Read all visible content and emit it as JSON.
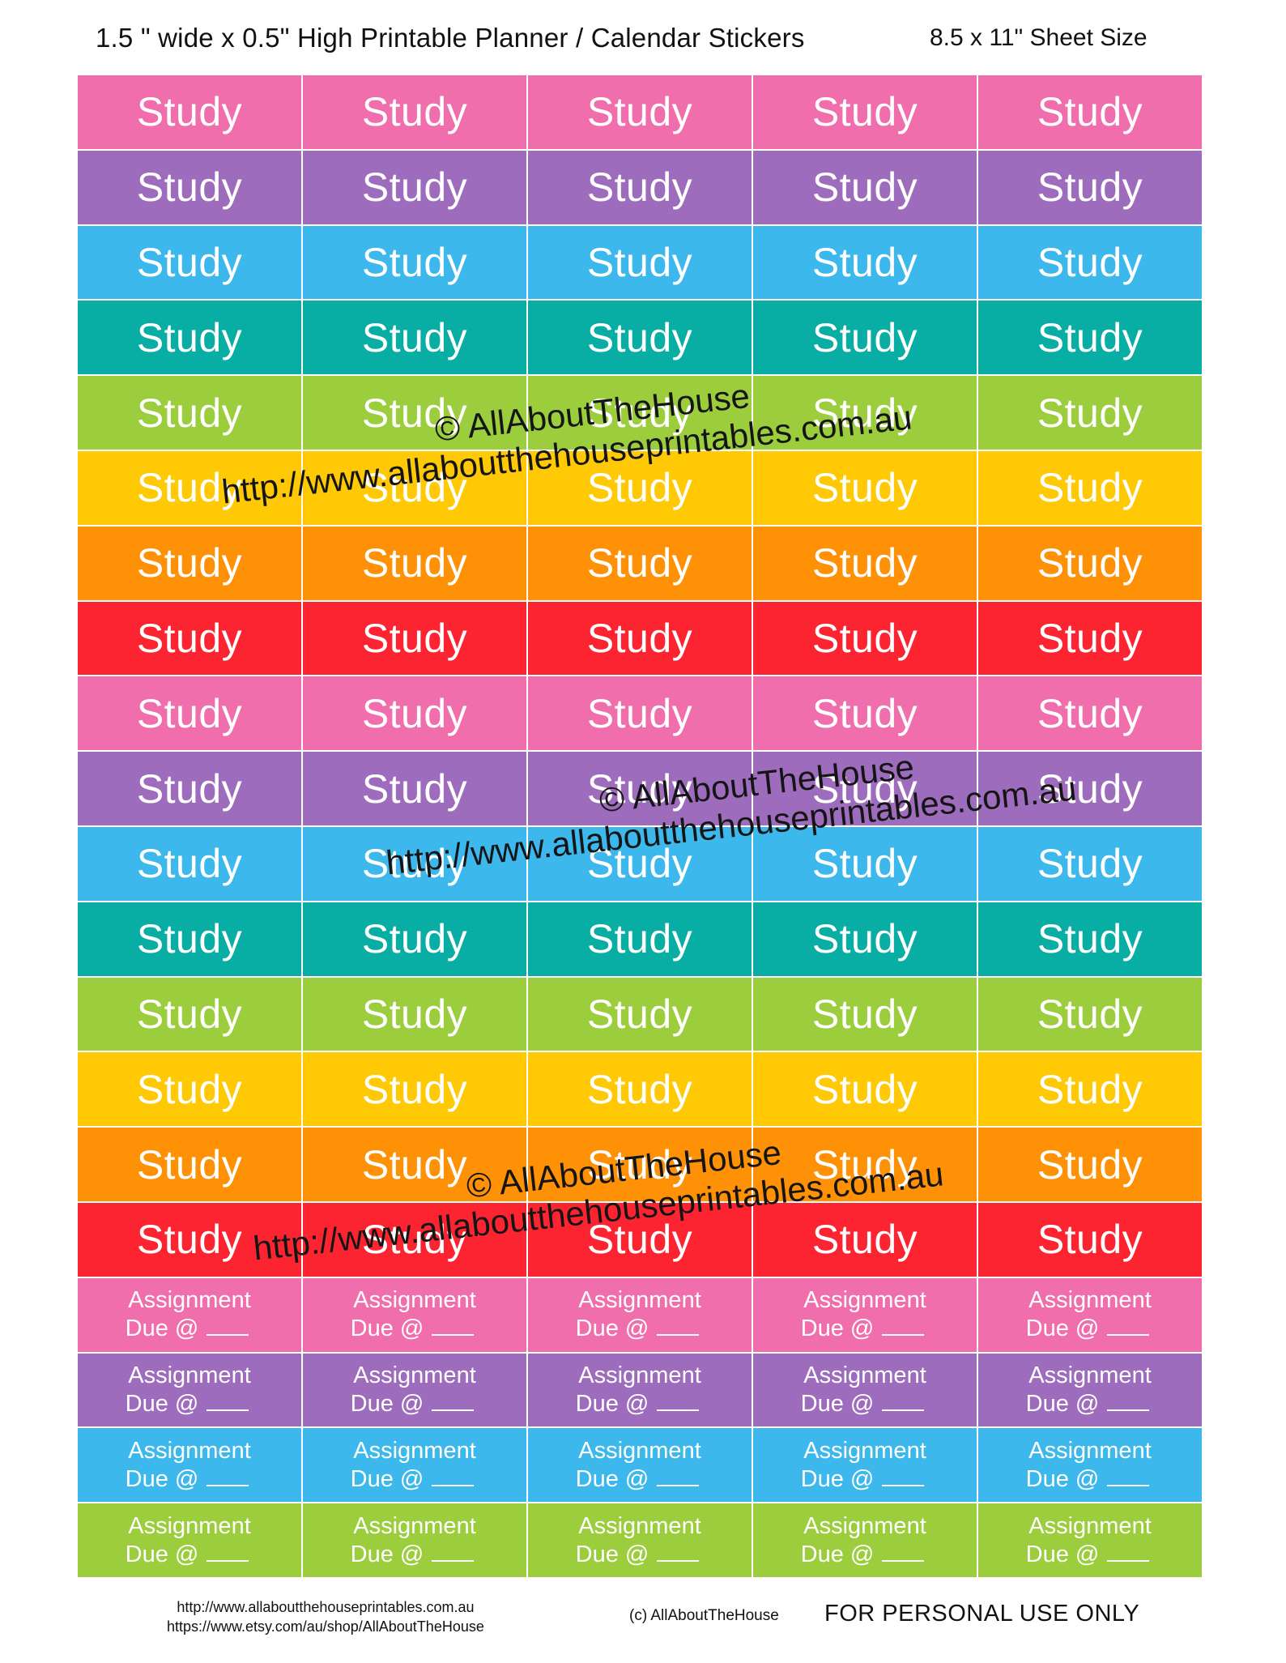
{
  "header": {
    "title": "1.5 ʺ wide x 0.5ʺ High Printable Planner / Calendar Stickers",
    "sheet_size": "8.5 x 11ʺ Sheet Size"
  },
  "sheet": {
    "columns": 5,
    "study_label": "Study",
    "study_row_colors": [
      "#f06eac",
      "#9e6cbd",
      "#3db8ec",
      "#08ada4",
      "#9bcd3c",
      "#ffc906",
      "#ff9106",
      "#fd2431",
      "#f06eac",
      "#9e6cbd",
      "#3db8ec",
      "#08ada4",
      "#9bcd3c",
      "#ffc906",
      "#ff9106",
      "#fd2431"
    ],
    "assignment_line1": "Assignment",
    "assignment_line2": "Due @",
    "assignment_row_colors": [
      "#f06eac",
      "#9e6cbd",
      "#3db8ec",
      "#9bcd3c"
    ]
  },
  "watermarks": [
    {
      "name": "© AllAboutTheHouse",
      "url": "http://www.allaboutthehouseprintables.com.au"
    },
    {
      "name": "© AllAboutTheHouse",
      "url": "http://www.allaboutthehouseprintables.com.au"
    },
    {
      "name": "© AllAboutTheHouse",
      "url": "http://www.allaboutthehouseprintables.com.au"
    }
  ],
  "footer": {
    "url1": "http://www.allaboutthehouseprintables.com.au",
    "url2": "https://www.etsy.com/au/shop/AllAboutTheHouse",
    "copyright": "(c) AllAboutTheHouse",
    "personal": "FOR PERSONAL USE ONLY"
  }
}
